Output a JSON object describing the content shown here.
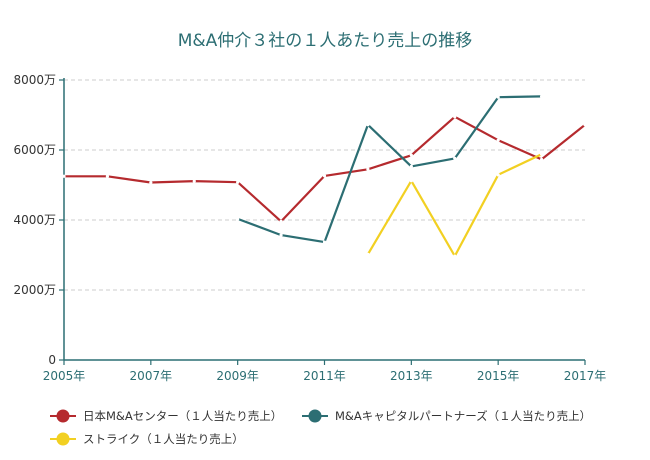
{
  "chart_data": {
    "type": "line",
    "title": "M&A仲介３社の１人あたり売上の推移",
    "x": [
      2005,
      2006,
      2007,
      2008,
      2009,
      2010,
      2011,
      2012,
      2013,
      2014,
      2015,
      2016,
      2017
    ],
    "x_ticks": [
      "2005年",
      "2007年",
      "2009年",
      "2011年",
      "2013年",
      "2015年",
      "2017年"
    ],
    "y_ticks": [
      "0",
      "2000万",
      "4000万",
      "6000万",
      "8000万"
    ],
    "ylim": [
      0,
      8000
    ],
    "xlim": [
      2005,
      2017
    ],
    "grid": true,
    "legend_position": "bottom",
    "series": [
      {
        "name": "日本M&Aセンター（１人当たり売上）",
        "color": "#b52a2e",
        "values": [
          5250,
          5250,
          5070,
          5110,
          5080,
          3960,
          5260,
          5450,
          5850,
          6950,
          6280,
          5730,
          6720
        ]
      },
      {
        "name": "M&Aキャピタルパートナーズ（１人当たり売上）",
        "color": "#2c6e73",
        "values": [
          null,
          null,
          null,
          null,
          4030,
          3570,
          3370,
          6720,
          5530,
          5760,
          7510,
          7530,
          null
        ]
      },
      {
        "name": "ストライク（１人当たり売上）",
        "color": "#f2d022",
        "values": [
          null,
          null,
          null,
          null,
          null,
          null,
          null,
          3020,
          5120,
          2970,
          5290,
          5880,
          null
        ]
      }
    ]
  }
}
